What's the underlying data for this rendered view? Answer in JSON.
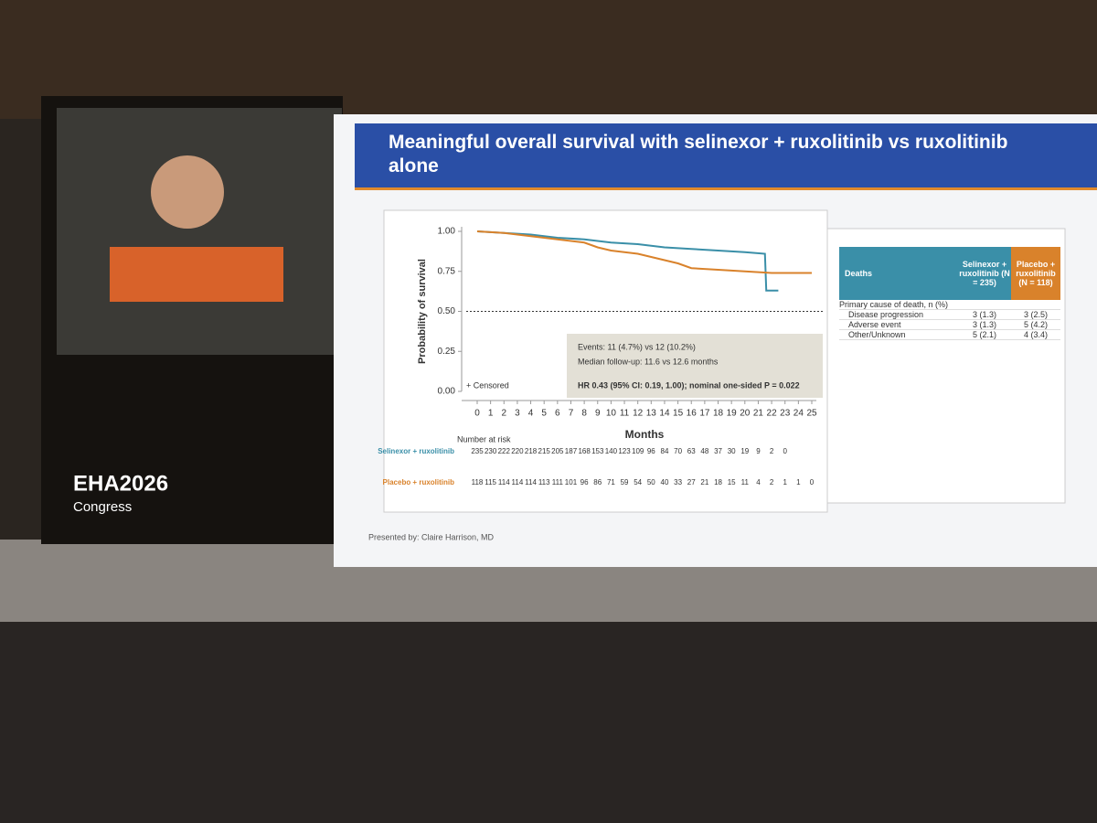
{
  "screen": {
    "logo": "EHA2026",
    "logo_sub": "Congress",
    "presenter": "Presented by: Claire Harrison, MD"
  },
  "chart_data": {
    "type": "line",
    "title": "Meaningful overall survival with selinexor + ruxolitinib vs ruxolitinib alone",
    "y_label": "Probability of survival",
    "x_label": "Months",
    "xlim": [
      0,
      25
    ],
    "xticks": [
      0,
      1,
      2,
      3,
      4,
      5,
      6,
      7,
      8,
      9,
      10,
      11,
      12,
      13,
      14,
      15,
      16,
      17,
      18,
      19,
      20,
      21,
      22,
      23,
      24,
      25
    ],
    "ylim": [
      0,
      1
    ],
    "yticks": [
      {
        "value": 0,
        "label": "0.00"
      },
      {
        "value": 0.25,
        "label": "0.25"
      },
      {
        "value": 0.5,
        "label": "0.50"
      },
      {
        "value": 0.75,
        "label": "0.75"
      },
      {
        "value": 1,
        "label": "1.00"
      }
    ],
    "reference_line": 0.5,
    "censor_note": "+ Censored",
    "series": [
      {
        "name": "Selinexor + ruxolitinib",
        "color": "#3a8fa8",
        "x": [
          0,
          2,
          4,
          6,
          8,
          10,
          12,
          14,
          16,
          18,
          20,
          21.5,
          21.6,
          22.5
        ],
        "values": [
          1,
          0.99,
          0.98,
          0.96,
          0.95,
          0.93,
          0.92,
          0.9,
          0.89,
          0.88,
          0.87,
          0.86,
          0.63,
          0.63
        ]
      },
      {
        "name": "Placebo + ruxolitinib",
        "color": "#d9822b",
        "x": [
          0,
          2,
          4,
          6,
          8,
          9,
          10,
          12,
          13,
          14,
          15,
          16,
          18,
          20,
          22,
          25
        ],
        "values": [
          1,
          0.99,
          0.97,
          0.95,
          0.93,
          0.9,
          0.88,
          0.86,
          0.84,
          0.82,
          0.8,
          0.77,
          0.76,
          0.75,
          0.74,
          0.74
        ]
      }
    ],
    "annotation": [
      "Events: 11 (4.7%) vs 12 (10.2%)",
      "Median follow-up: 11.6 vs 12.6 months",
      "HR 0.43 (95% CI: 0.19, 1.00); nominal one-sided P = 0.022"
    ],
    "risk_title": "Number at risk",
    "at_risk": [
      [
        235,
        230,
        222,
        220,
        218,
        215,
        205,
        187,
        168,
        153,
        140,
        123,
        109,
        96,
        84,
        70,
        63,
        48,
        37,
        30,
        19,
        9,
        2,
        0
      ],
      [
        118,
        115,
        114,
        114,
        114,
        113,
        111,
        101,
        96,
        86,
        71,
        59,
        54,
        50,
        40,
        33,
        27,
        21,
        18,
        15,
        11,
        4,
        2,
        1,
        1,
        0
      ]
    ]
  },
  "deaths_table": {
    "header": [
      "Deaths",
      "Selinexor + ruxolitinib (N = 235)",
      "Placebo + ruxolitinib (N = 118)"
    ],
    "rows": [
      [
        "Primary cause of death, n (%)",
        "",
        ""
      ],
      [
        "Disease progression",
        "3 (1.3)",
        "3 (2.5)"
      ],
      [
        "Adverse event",
        "3 (1.3)",
        "5 (4.2)"
      ],
      [
        "Other/Unknown",
        "5 (2.1)",
        "4 (3.4)"
      ]
    ]
  }
}
